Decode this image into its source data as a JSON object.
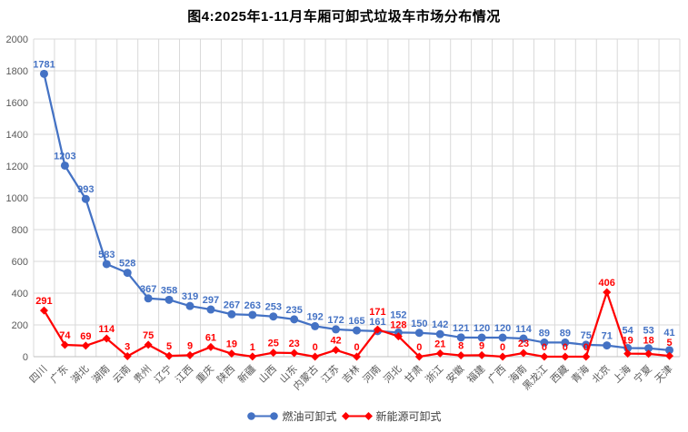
{
  "chart_data": {
    "type": "line",
    "title": "图4:2025年1-11月车厢可卸式垃圾车市场分布情况",
    "categories": [
      "四川",
      "广东",
      "湖北",
      "湖南",
      "云南",
      "贵州",
      "辽宁",
      "江西",
      "重庆",
      "陕西",
      "新疆",
      "山西",
      "山东",
      "内蒙古",
      "江苏",
      "吉林",
      "河南",
      "河北",
      "甘肃",
      "浙江",
      "安徽",
      "福建",
      "广西",
      "海南",
      "黑龙江",
      "西藏",
      "青海",
      "北京",
      "上海",
      "宁夏",
      "天津"
    ],
    "series": [
      {
        "name": "燃油可卸式",
        "marker": "circle",
        "color": "#4472C4",
        "values": [
          1781,
          1203,
          993,
          583,
          528,
          367,
          358,
          319,
          297,
          267,
          263,
          253,
          235,
          192,
          172,
          165,
          161,
          152,
          150,
          142,
          121,
          120,
          120,
          114,
          89,
          89,
          75,
          71,
          54,
          53,
          41
        ]
      },
      {
        "name": "新能源可卸式",
        "marker": "diamond",
        "color": "#FF0000",
        "values": [
          291,
          74,
          69,
          114,
          3,
          75,
          5,
          9,
          61,
          19,
          1,
          25,
          23,
          0,
          42,
          0,
          171,
          128,
          0,
          21,
          8,
          9,
          0,
          23,
          0,
          0,
          0,
          406,
          19,
          18,
          5
        ]
      }
    ],
    "ylim": [
      0,
      2000
    ],
    "yticks": [
      0,
      200,
      400,
      600,
      800,
      1000,
      1200,
      1400,
      1600,
      1800,
      2000
    ],
    "grid": true,
    "legend_position": "bottom",
    "grid_color": "#d9d9d9",
    "axis_color": "#bfbfbf",
    "tick_label_color": "#595959"
  }
}
